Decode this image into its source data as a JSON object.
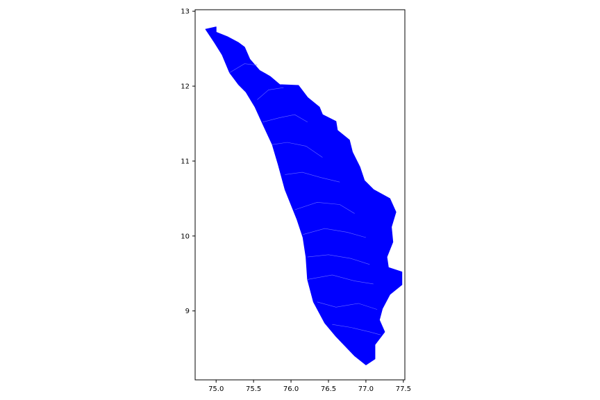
{
  "chart_data": {
    "type": "map",
    "title": "",
    "xlabel": "",
    "ylabel": "",
    "xlim": [
      74.72,
      77.52
    ],
    "ylim": [
      8.08,
      13.02
    ],
    "x_ticks": [
      {
        "value": 75.0,
        "label": "75.0"
      },
      {
        "value": 75.5,
        "label": "75.5"
      },
      {
        "value": 76.0,
        "label": "76.0"
      },
      {
        "value": 76.5,
        "label": "76.5"
      },
      {
        "value": 77.0,
        "label": "77.0"
      },
      {
        "value": 77.5,
        "label": "77.5"
      }
    ],
    "y_ticks": [
      {
        "value": 9,
        "label": "9"
      },
      {
        "value": 10,
        "label": "10"
      },
      {
        "value": 11,
        "label": "11"
      },
      {
        "value": 12,
        "label": "12"
      },
      {
        "value": 13,
        "label": "13"
      }
    ],
    "fill_color": "#0000ff",
    "boundary_color": "#6a6aff",
    "grid": false,
    "legend": "none",
    "region_outline": [
      [
        74.86,
        12.76
      ],
      [
        75.0,
        12.79
      ],
      [
        75.0,
        12.72
      ],
      [
        75.15,
        12.66
      ],
      [
        75.3,
        12.58
      ],
      [
        75.38,
        12.52
      ],
      [
        75.45,
        12.36
      ],
      [
        75.58,
        12.21
      ],
      [
        75.72,
        12.13
      ],
      [
        75.85,
        12.02
      ],
      [
        76.1,
        12.01
      ],
      [
        76.22,
        11.85
      ],
      [
        76.38,
        11.72
      ],
      [
        76.42,
        11.62
      ],
      [
        76.6,
        11.53
      ],
      [
        76.62,
        11.41
      ],
      [
        76.78,
        11.28
      ],
      [
        76.82,
        11.12
      ],
      [
        76.92,
        10.92
      ],
      [
        76.98,
        10.74
      ],
      [
        77.1,
        10.62
      ],
      [
        77.32,
        10.5
      ],
      [
        77.4,
        10.32
      ],
      [
        77.34,
        10.12
      ],
      [
        77.36,
        9.92
      ],
      [
        77.28,
        9.72
      ],
      [
        77.3,
        9.58
      ],
      [
        77.48,
        9.52
      ],
      [
        77.48,
        9.35
      ],
      [
        77.32,
        9.22
      ],
      [
        77.22,
        9.03
      ],
      [
        77.18,
        8.88
      ],
      [
        77.25,
        8.72
      ],
      [
        77.12,
        8.55
      ],
      [
        77.12,
        8.36
      ],
      [
        77.0,
        8.28
      ],
      [
        76.85,
        8.4
      ],
      [
        76.6,
        8.66
      ],
      [
        76.45,
        8.84
      ],
      [
        76.3,
        9.12
      ],
      [
        76.22,
        9.42
      ],
      [
        76.2,
        9.72
      ],
      [
        76.16,
        9.98
      ],
      [
        76.08,
        10.22
      ],
      [
        75.92,
        10.62
      ],
      [
        75.83,
        10.95
      ],
      [
        75.75,
        11.22
      ],
      [
        75.62,
        11.5
      ],
      [
        75.52,
        11.72
      ],
      [
        75.4,
        11.92
      ],
      [
        75.3,
        12.02
      ],
      [
        75.18,
        12.18
      ],
      [
        75.08,
        12.42
      ],
      [
        74.98,
        12.58
      ],
      [
        74.86,
        12.76
      ]
    ],
    "district_boundaries": [
      [
        [
          75.18,
          12.18
        ],
        [
          75.38,
          12.3
        ],
        [
          75.55,
          12.28
        ]
      ],
      [
        [
          75.55,
          11.82
        ],
        [
          75.7,
          11.95
        ],
        [
          75.9,
          11.98
        ]
      ],
      [
        [
          75.62,
          11.52
        ],
        [
          75.85,
          11.58
        ],
        [
          76.05,
          11.62
        ],
        [
          76.22,
          11.52
        ]
      ],
      [
        [
          75.75,
          11.22
        ],
        [
          75.95,
          11.25
        ],
        [
          76.2,
          11.2
        ],
        [
          76.42,
          11.05
        ]
      ],
      [
        [
          75.92,
          10.82
        ],
        [
          76.15,
          10.85
        ],
        [
          76.4,
          10.78
        ],
        [
          76.65,
          10.72
        ]
      ],
      [
        [
          76.05,
          10.35
        ],
        [
          76.35,
          10.45
        ],
        [
          76.65,
          10.42
        ],
        [
          76.85,
          10.3
        ]
      ],
      [
        [
          76.16,
          10.02
        ],
        [
          76.45,
          10.1
        ],
        [
          76.75,
          10.05
        ],
        [
          77.0,
          9.98
        ]
      ],
      [
        [
          76.22,
          9.72
        ],
        [
          76.5,
          9.75
        ],
        [
          76.8,
          9.7
        ],
        [
          77.05,
          9.62
        ]
      ],
      [
        [
          76.22,
          9.42
        ],
        [
          76.55,
          9.48
        ],
        [
          76.85,
          9.4
        ],
        [
          77.1,
          9.36
        ]
      ],
      [
        [
          76.35,
          9.12
        ],
        [
          76.6,
          9.05
        ],
        [
          76.9,
          9.1
        ],
        [
          77.15,
          9.02
        ]
      ],
      [
        [
          76.55,
          8.82
        ],
        [
          76.8,
          8.78
        ],
        [
          77.05,
          8.72
        ],
        [
          77.2,
          8.68
        ]
      ]
    ]
  }
}
